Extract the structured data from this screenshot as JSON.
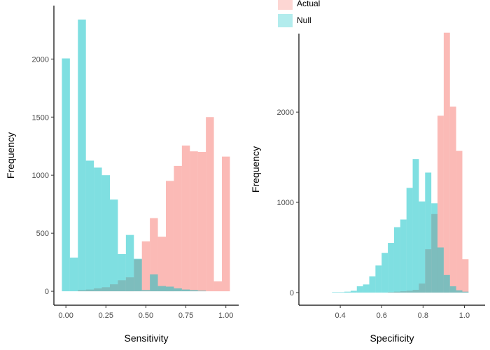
{
  "legend": {
    "items": [
      {
        "label": "Actual",
        "color": "#F8766D"
      },
      {
        "label": "Null",
        "color": "#00BFC4"
      }
    ]
  },
  "chart_data": [
    {
      "type": "histogram",
      "title": "",
      "xlabel": "Sensitivity",
      "ylabel": "Frequency",
      "xlim": [
        -0.075,
        1.08
      ],
      "ylim": [
        -120,
        2460
      ],
      "x_ticks": [
        "0.00",
        "0.25",
        "0.50",
        "0.75",
        "1.00"
      ],
      "x_tick_values": [
        0.0,
        0.25,
        0.5,
        0.75,
        1.0
      ],
      "y_ticks": [
        "0",
        "500",
        "1000",
        "1500",
        "2000"
      ],
      "y_tick_values": [
        0,
        500,
        1000,
        1500,
        2000
      ],
      "bin_width": 0.05,
      "bin_centers": [
        0.0,
        0.05,
        0.1,
        0.15,
        0.2,
        0.25,
        0.3,
        0.35,
        0.4,
        0.45,
        0.5,
        0.55,
        0.6,
        0.65,
        0.7,
        0.75,
        0.8,
        0.85,
        0.9,
        0.95,
        1.0
      ],
      "series": [
        {
          "name": "Actual",
          "values": [
            0,
            0,
            10,
            15,
            25,
            35,
            60,
            95,
            120,
            275,
            430,
            630,
            470,
            950,
            1080,
            1255,
            1205,
            1200,
            1500,
            85,
            1160
          ]
        },
        {
          "name": "Null",
          "values": [
            2005,
            290,
            2340,
            1125,
            1065,
            1000,
            790,
            320,
            485,
            280,
            10,
            145,
            45,
            40,
            25,
            15,
            10,
            5,
            0,
            0,
            0
          ]
        }
      ]
    },
    {
      "type": "histogram",
      "title": "",
      "xlabel": "Specificity",
      "ylabel": "Frequency",
      "xlim": [
        0.2,
        1.1
      ],
      "ylim": [
        -140,
        2870
      ],
      "x_ticks": [
        "0.4",
        "0.6",
        "0.8",
        "1.0"
      ],
      "x_tick_values": [
        0.4,
        0.6,
        0.8,
        1.0
      ],
      "y_ticks": [
        "0",
        "1000",
        "2000"
      ],
      "y_tick_values": [
        0,
        1000,
        2000
      ],
      "bin_width": 0.03,
      "bin_centers": [
        0.375,
        0.405,
        0.435,
        0.465,
        0.495,
        0.525,
        0.555,
        0.585,
        0.615,
        0.645,
        0.675,
        0.705,
        0.735,
        0.765,
        0.795,
        0.825,
        0.855,
        0.885,
        0.915,
        0.945,
        0.975,
        1.005
      ],
      "series": [
        {
          "name": "Actual",
          "values": [
            0,
            0,
            0,
            0,
            0,
            0,
            0,
            0,
            0,
            5,
            10,
            15,
            20,
            30,
            100,
            480,
            870,
            1960,
            2880,
            2060,
            1570,
            370
          ]
        },
        {
          "name": "Null",
          "values": [
            5,
            5,
            10,
            20,
            70,
            90,
            180,
            300,
            440,
            550,
            725,
            810,
            1160,
            1480,
            1010,
            1330,
            990,
            500,
            195,
            70,
            25,
            10
          ]
        }
      ]
    }
  ]
}
